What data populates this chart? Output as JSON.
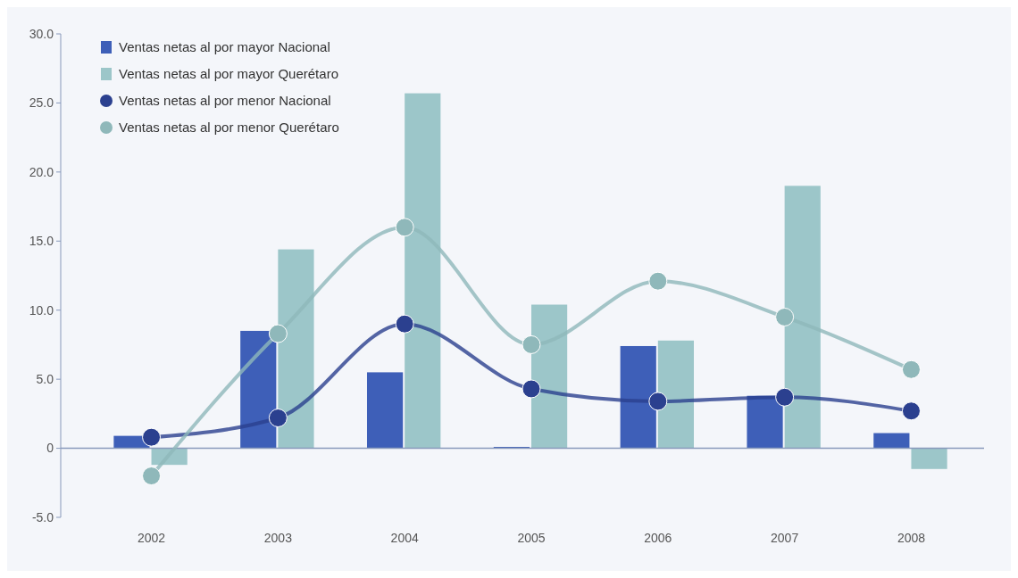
{
  "chart_data": {
    "type": "bar",
    "categories": [
      "2002",
      "2003",
      "2004",
      "2005",
      "2006",
      "2007",
      "2008"
    ],
    "series": [
      {
        "name": "Ventas netas al por mayor Nacional",
        "color": "#3e5fb8",
        "values": [
          0.9,
          8.5,
          5.5,
          0.1,
          7.4,
          3.8,
          1.1
        ]
      },
      {
        "name": "Ventas netas al por mayor Querétaro",
        "color": "#9cc6c9",
        "values": [
          -1.2,
          14.4,
          25.7,
          10.4,
          7.8,
          19.0,
          -1.5
        ]
      },
      {
        "name": "Ventas netas al por menor Nacional",
        "type": "line",
        "color": "#2b408f",
        "values": [
          0.8,
          2.2,
          9.0,
          4.3,
          3.4,
          3.7,
          2.7
        ]
      },
      {
        "name": "Ventas netas al por menor Querétaro",
        "type": "line",
        "color": "#8fb8ba",
        "values": [
          -2.0,
          8.3,
          16.0,
          7.5,
          12.1,
          9.5,
          5.7
        ]
      }
    ],
    "ylim": [
      -5,
      30
    ],
    "yticks": [
      {
        "value": -5,
        "label": "-5.0"
      },
      0,
      {
        "value": 5,
        "label": "5.0"
      },
      {
        "value": 10,
        "label": "10.0"
      },
      {
        "value": 15,
        "label": "15.0"
      },
      {
        "value": 20,
        "label": "20.0"
      },
      {
        "value": 25,
        "label": "25.0"
      },
      {
        "value": 30,
        "label": "30.0"
      }
    ],
    "ref_lines": [
      {
        "axis": "y",
        "value": 0,
        "color": "#8899bb"
      }
    ],
    "legend": "top left",
    "marker": "circle",
    "grid": false
  }
}
